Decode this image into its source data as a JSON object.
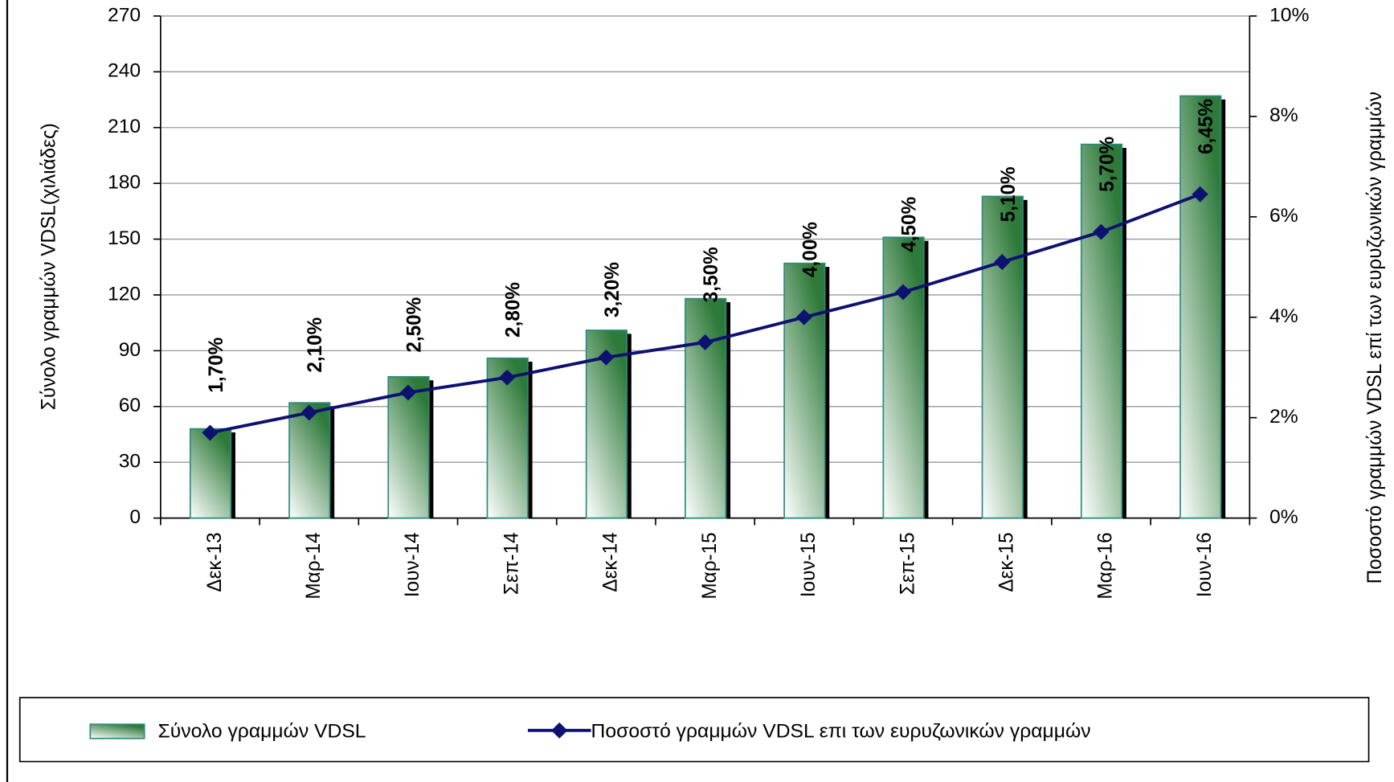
{
  "chart_data": {
    "type": "bar",
    "categories": [
      "Δεκ-13",
      "Μαρ-14",
      "Ιουν-14",
      "Σεπ-14",
      "Δεκ-14",
      "Μαρ-15",
      "Ιουν-15",
      "Σεπ-15",
      "Δεκ-15",
      "Μαρ-16",
      "Ιουν-16"
    ],
    "y_label": "Σύνολο γραμμών VDSL(χιλιάδες)",
    "y2_label": "Ποσοστό γραμμών VDSL επί των ευρυζωνικών γραμμών",
    "ylim": [
      0,
      270
    ],
    "yticks": [
      0,
      30,
      60,
      90,
      120,
      150,
      180,
      210,
      240,
      270
    ],
    "y2lim": [
      0,
      10
    ],
    "y2ticks": [
      {
        "value": 0,
        "label": "0%"
      },
      {
        "value": 2,
        "label": "2%"
      },
      {
        "value": 4,
        "label": "4%"
      },
      {
        "value": 6,
        "label": "6%"
      },
      {
        "value": 8,
        "label": "8%"
      },
      {
        "value": 10,
        "label": "10%"
      }
    ],
    "grid": true,
    "legend": "bottom",
    "series": [
      {
        "name": "Σύνολο γραμμών VDSL",
        "type": "bar",
        "color": "#2e7a3a",
        "values": [
          48,
          62,
          76,
          86,
          101,
          118,
          137,
          151,
          173,
          201,
          227
        ]
      },
      {
        "name": "Ποσοστό γραμμών VDSL επι των ευρυζωνικών γραμμών",
        "type": "line",
        "axis": "y2",
        "color": "#0d1170",
        "values": [
          1.7,
          2.1,
          2.5,
          2.8,
          3.2,
          3.5,
          4.0,
          4.5,
          5.1,
          5.7,
          6.45
        ],
        "value_labels": [
          "1,70%",
          "2,10%",
          "2,50%",
          "2,80%",
          "3,20%",
          "3,50%",
          "4,00%",
          "4,50%",
          "5,10%",
          "5,70%",
          "6,45%"
        ]
      }
    ]
  }
}
